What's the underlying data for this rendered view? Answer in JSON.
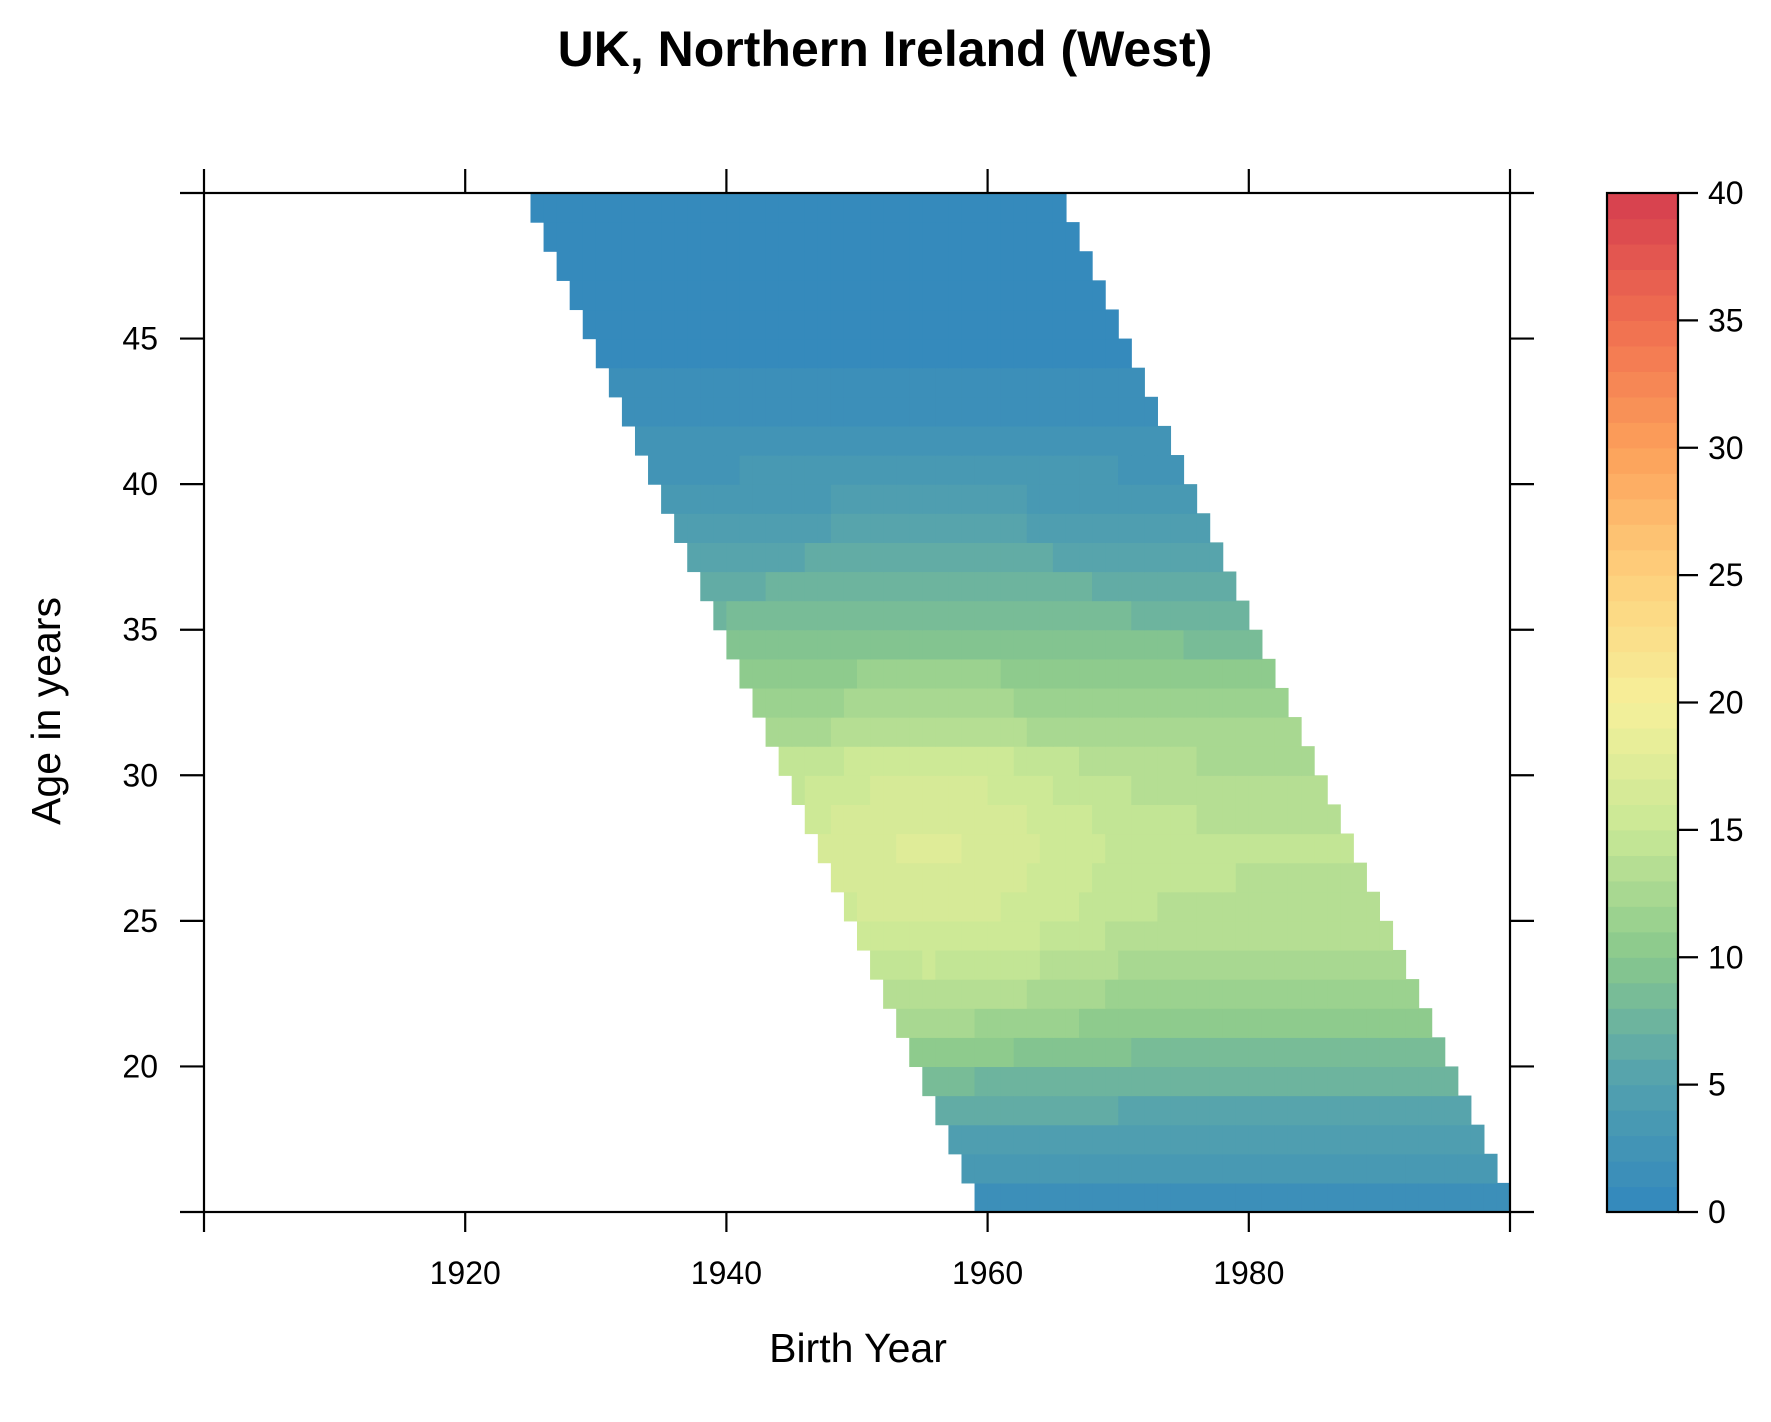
{
  "chart_data": {
    "type": "heatmap",
    "title": "UK, Northern Ireland (West)",
    "xlabel": "Birth Year",
    "ylabel": "Age in years",
    "xlim": [
      1900,
      2000
    ],
    "ylim": [
      15,
      50
    ],
    "x_ticks": [
      1920,
      1940,
      1960,
      1980
    ],
    "x_tick_labels": [
      "1920",
      "1940",
      "1960",
      "1980"
    ],
    "y_ticks": [
      20,
      25,
      30,
      35,
      40,
      45
    ],
    "y_tick_labels": [
      "20",
      "25",
      "30",
      "35",
      "40",
      "45"
    ],
    "colorbar": {
      "min": 0,
      "max": 40,
      "ticks": [
        0,
        5,
        10,
        15,
        20,
        25,
        30,
        35,
        40
      ],
      "tick_labels": [
        "0",
        "5",
        "10",
        "15",
        "20",
        "25",
        "30",
        "35",
        "40"
      ],
      "levels": 40
    },
    "period_range": [
      1974,
      2014
    ],
    "age_range": [
      15,
      49
    ],
    "cell_values_by_age": {
      "15": 1.4,
      "16": 3.0,
      "17": 4.4,
      "18": 5.8,
      "19": 7.2,
      "20": 8.6,
      "21": 10.0,
      "22": 11.2,
      "23": 12.3,
      "24": 13.1,
      "25": 13.6,
      "26": 13.9,
      "27": 14.0,
      "28": 13.8,
      "29": 13.4,
      "30": 12.8,
      "31": 12.0,
      "32": 11.0,
      "33": 10.0,
      "34": 8.9,
      "35": 7.8,
      "36": 6.7,
      "37": 5.6,
      "38": 4.6,
      "39": 3.7,
      "40": 2.9,
      "41": 2.2,
      "42": 1.6,
      "43": 1.1,
      "44": 0.7,
      "45": 0.5,
      "46": 0.3,
      "47": 0.2,
      "48": 0.1,
      "49": 0.1
    }
  }
}
